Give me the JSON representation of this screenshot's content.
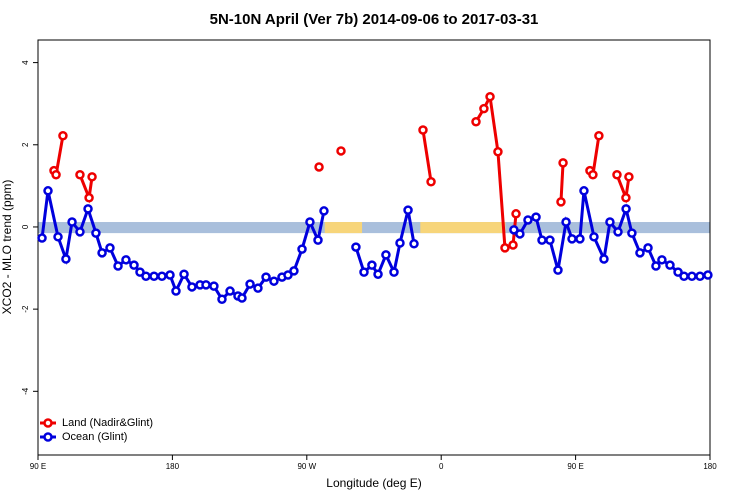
{
  "chart_data": {
    "type": "line",
    "title": "5N-10N April (Ver 7b)   2014-09-06 to 2017-03-31",
    "x_label": "Longitude (deg E)",
    "y_label": "XCO2 - MLO trend (ppm)",
    "xlim": [
      90,
      540
    ],
    "ylim": [
      -5.55,
      4.55
    ],
    "xticks": [
      {
        "value": 90,
        "label": "90 E"
      },
      180,
      {
        "value": 270,
        "label": "90 W"
      },
      {
        "value": 360,
        "label": "0"
      },
      {
        "value": 450,
        "label": "90 E"
      },
      {
        "value": 540,
        "label": "180"
      }
    ],
    "yticks": [
      4,
      2,
      0,
      -2,
      -4
    ],
    "reference_band": {
      "ylim": [
        -0.15,
        0.12
      ],
      "color": "#a9bfdc"
    },
    "highlight_spans": [
      [
        282,
        307
      ],
      [
        346,
        403
      ]
    ],
    "highlight_color": "#f7d57a",
    "legend": "bottom-left",
    "series": [
      {
        "name": "Land (Nadir&Glint)",
        "color": "#ee0000",
        "x": [
          100.7,
          102.1,
          106.7,
          null,
          118.1,
          124.2,
          126.2,
          null,
          278.2,
          null,
          292.9,
          null,
          347.8,
          353.2,
          null,
          383.3,
          388.6,
          392.7,
          398.0,
          402.7,
          408.1,
          410.1,
          null,
          440.2,
          441.6,
          null,
          459.6,
          461.6,
          465.6,
          null,
          477.7,
          483.7,
          485.7
        ],
        "values": [
          1.37,
          1.27,
          2.22,
          null,
          1.27,
          0.71,
          1.22,
          null,
          1.46,
          null,
          1.85,
          null,
          2.36,
          1.1,
          null,
          2.56,
          2.88,
          3.17,
          1.83,
          -0.51,
          -0.44,
          0.32,
          null,
          0.61,
          1.56,
          null,
          1.37,
          1.27,
          2.22,
          null,
          1.27,
          0.71,
          1.22
        ]
      },
      {
        "name": "Ocean (Glint)",
        "color": "#0000dd",
        "x": [
          92.7,
          96.7,
          103.4,
          108.7,
          112.8,
          118.1,
          123.5,
          128.8,
          132.9,
          138.2,
          143.6,
          148.9,
          154.3,
          158.3,
          162.3,
          167.7,
          173.0,
          178.4,
          182.4,
          187.8,
          193.1,
          198.5,
          202.5,
          207.8,
          213.2,
          218.6,
          223.9,
          226.6,
          232.0,
          237.3,
          242.7,
          248.0,
          253.4,
          257.4,
          261.4,
          266.8,
          272.1,
          277.5,
          281.5,
          null,
          302.9,
          308.3,
          313.6,
          317.7,
          323.0,
          328.4,
          332.4,
          337.8,
          341.8,
          null,
          408.7,
          412.7,
          418.1,
          423.5,
          427.5,
          432.8,
          438.2,
          443.6,
          447.6,
          452.9,
          455.6,
          462.3,
          469.0,
          473.0,
          478.4,
          483.8,
          487.7,
          493.1,
          498.5,
          503.8,
          507.8,
          513.2,
          518.6,
          522.6,
          527.9,
          533.3,
          538.6
        ],
        "values": [
          -0.27,
          0.88,
          -0.24,
          -0.78,
          0.12,
          -0.12,
          0.44,
          -0.15,
          -0.63,
          -0.51,
          -0.95,
          -0.8,
          -0.93,
          -1.1,
          -1.2,
          -1.2,
          -1.2,
          -1.17,
          -1.56,
          -1.15,
          -1.46,
          -1.41,
          -1.41,
          -1.44,
          -1.76,
          -1.56,
          -1.68,
          -1.73,
          -1.39,
          -1.49,
          -1.22,
          -1.32,
          -1.22,
          -1.17,
          -1.07,
          -0.54,
          0.12,
          -0.32,
          0.39,
          null,
          -0.49,
          -1.1,
          -0.93,
          -1.15,
          -0.68,
          -1.1,
          -0.39,
          0.41,
          -0.41,
          null,
          -0.07,
          -0.17,
          0.17,
          0.24,
          -0.32,
          -0.32,
          -1.05,
          0.12,
          -0.29,
          -0.29,
          0.88,
          -0.24,
          -0.78,
          0.12,
          -0.12,
          0.44,
          -0.15,
          -0.63,
          -0.51,
          -0.95,
          -0.8,
          -0.93,
          -1.1,
          -1.2,
          -1.2,
          -1.2,
          -1.17
        ]
      }
    ]
  }
}
